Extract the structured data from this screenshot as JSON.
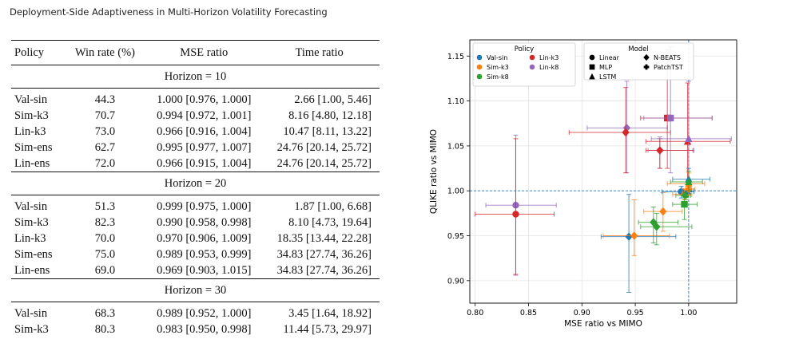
{
  "running_head": "Deployment-Side Adaptiveness in Multi-Horizon Volatility Forecasting",
  "table": {
    "columns": [
      "Policy",
      "Win rate (%)",
      "MSE ratio",
      "Time ratio"
    ],
    "groups": [
      {
        "label": "Horizon = 10",
        "rows": [
          [
            "Val-sin",
            "44.3",
            "1.000 [0.976, 1.000]",
            "2.66 [1.00, 5.46]"
          ],
          [
            "Sim-k3",
            "70.7",
            "0.994 [0.972, 1.001]",
            "8.16 [4.80, 12.18]"
          ],
          [
            "Lin-k3",
            "73.0",
            "0.966 [0.916, 1.004]",
            "10.47 [8.11, 13.22]"
          ],
          [
            "Sim-ens",
            "62.7",
            "0.995 [0.977, 1.007]",
            "24.76 [20.14, 25.72]"
          ],
          [
            "Lin-ens",
            "72.0",
            "0.966 [0.915, 1.004]",
            "24.76 [20.14, 25.72]"
          ]
        ]
      },
      {
        "label": "Horizon = 20",
        "rows": [
          [
            "Val-sin",
            "51.3",
            "0.999 [0.975, 1.000]",
            "1.87 [1.00, 6.68]"
          ],
          [
            "Sim-k3",
            "82.3",
            "0.990 [0.958, 0.998]",
            "8.10 [4.73, 19.64]"
          ],
          [
            "Lin-k3",
            "70.0",
            "0.970 [0.906, 1.009]",
            "18.35 [13.44, 22.28]"
          ],
          [
            "Sim-ens",
            "75.0",
            "0.989 [0.953, 0.999]",
            "34.83 [27.74, 36.26]"
          ],
          [
            "Lin-ens",
            "69.0",
            "0.969 [0.903, 1.015]",
            "34.83 [27.74, 36.26]"
          ]
        ]
      },
      {
        "label": "Horizon = 30",
        "rows": [
          [
            "Val-sin",
            "68.3",
            "0.989 [0.952, 1.000]",
            "3.45 [1.64, 18.92]"
          ],
          [
            "Sim-k3",
            "80.3",
            "0.983 [0.950, 0.998]",
            "11.44 [5.73, 29.97]"
          ]
        ]
      }
    ]
  },
  "chart_data": {
    "type": "scatter",
    "xlabel": "MSE ratio vs MIMO",
    "ylabel": "QLIKE ratio vs MIMO",
    "xlim": [
      0.795,
      1.045
    ],
    "ylim": [
      0.875,
      1.168
    ],
    "xticks": [
      "0.80",
      "0.85",
      "0.90",
      "0.95",
      "1.00"
    ],
    "yticks": [
      "0.90",
      "0.95",
      "1.00",
      "1.05",
      "1.10",
      "1.15"
    ],
    "grid": true,
    "reference_lines": {
      "x": 1.0,
      "y": 1.0,
      "color": "#1f77b4"
    },
    "legend_policy": {
      "title": "Policy",
      "entries": [
        {
          "name": "Val-sin",
          "color": "#1f77b4"
        },
        {
          "name": "Sim-k3",
          "color": "#ff7f0e"
        },
        {
          "name": "Sim-k8",
          "color": "#2ca02c"
        },
        {
          "name": "Lin-k3",
          "color": "#d62728"
        },
        {
          "name": "Lin-k8",
          "color": "#9467bd"
        }
      ]
    },
    "legend_model": {
      "title": "Model",
      "entries": [
        {
          "name": "Linear",
          "marker": "circle"
        },
        {
          "name": "MLP",
          "marker": "square"
        },
        {
          "name": "LSTM",
          "marker": "triangle"
        },
        {
          "name": "N-BEATS",
          "marker": "diamond"
        },
        {
          "name": "PatchTST",
          "marker": "plus"
        }
      ]
    },
    "points": [
      {
        "policy": "Lin-k8",
        "model": "circle",
        "x": 0.838,
        "y": 0.984,
        "xerr": [
          0.81,
          0.876
        ],
        "yerr": [
          0.906,
          1.062
        ]
      },
      {
        "policy": "Lin-k3",
        "model": "circle",
        "x": 0.838,
        "y": 0.974,
        "xerr": [
          0.8,
          0.874
        ],
        "yerr": [
          0.907,
          1.058
        ]
      },
      {
        "policy": "Lin-k8",
        "model": "diamond",
        "x": 0.942,
        "y": 1.07,
        "xerr": [
          0.905,
          0.98
        ],
        "yerr": [
          1.02,
          1.122
        ]
      },
      {
        "policy": "Lin-k3",
        "model": "diamond",
        "x": 0.941,
        "y": 1.065,
        "xerr": [
          0.888,
          0.983
        ],
        "yerr": [
          1.02,
          1.115
        ]
      },
      {
        "policy": "Lin-k3",
        "model": "square",
        "x": 0.98,
        "y": 1.081,
        "xerr": [
          0.955,
          1.022
        ],
        "yerr": [
          1.025,
          1.157
        ]
      },
      {
        "policy": "Lin-k8",
        "model": "square",
        "x": 0.983,
        "y": 1.081,
        "xerr": [
          0.958,
          1.022
        ],
        "yerr": [
          1.02,
          1.16
        ]
      },
      {
        "policy": "Lin-k8",
        "model": "diamond",
        "x": 0.973,
        "y": 1.045,
        "xerr": [
          0.962,
          1.005
        ],
        "yerr": [
          1.025,
          1.06
        ]
      },
      {
        "policy": "Lin-k3",
        "model": "diamond",
        "x": 0.973,
        "y": 1.045,
        "xerr": [
          0.96,
          1.004
        ],
        "yerr": [
          1.025,
          1.058
        ]
      },
      {
        "policy": "Lin-k3",
        "model": "triangle",
        "x": 0.999,
        "y": 1.055,
        "xerr": [
          0.96,
          1.039
        ],
        "yerr": [
          1.0,
          1.12
        ]
      },
      {
        "policy": "Lin-k8",
        "model": "triangle",
        "x": 1.0,
        "y": 1.058,
        "xerr": [
          0.965,
          1.04
        ],
        "yerr": [
          1.0,
          1.122
        ]
      },
      {
        "policy": "Val-sin",
        "model": "diamond",
        "x": 0.944,
        "y": 0.949,
        "xerr": [
          0.918,
          0.988
        ],
        "yerr": [
          0.887,
          0.996
        ]
      },
      {
        "policy": "Sim-k3",
        "model": "diamond",
        "x": 0.949,
        "y": 0.95,
        "xerr": [
          0.92,
          0.982
        ],
        "yerr": [
          0.928,
          0.99
        ]
      },
      {
        "policy": "Sim-k3",
        "model": "diamond",
        "x": 0.976,
        "y": 0.977,
        "xerr": [
          0.958,
          0.994
        ],
        "yerr": [
          0.955,
          0.998
        ]
      },
      {
        "policy": "Sim-k8",
        "model": "diamond",
        "x": 0.967,
        "y": 0.965,
        "xerr": [
          0.953,
          0.99
        ],
        "yerr": [
          0.942,
          0.982
        ]
      },
      {
        "policy": "Sim-k8",
        "model": "diamond",
        "x": 0.97,
        "y": 0.96,
        "xerr": [
          0.955,
          1.003
        ],
        "yerr": [
          0.94,
          0.975
        ]
      },
      {
        "policy": "Sim-k8",
        "model": "square",
        "x": 0.996,
        "y": 0.985,
        "xerr": [
          0.985,
          1.008
        ],
        "yerr": [
          0.968,
          0.998
        ]
      },
      {
        "policy": "Val-sin",
        "model": "circle",
        "x": 0.993,
        "y": 0.999,
        "xerr": [
          0.975,
          1.005
        ],
        "yerr": [
          0.992,
          1.005
        ]
      },
      {
        "policy": "Sim-k3",
        "model": "circle",
        "x": 0.996,
        "y": 0.996,
        "xerr": [
          0.985,
          1.003
        ],
        "yerr": [
          0.99,
          1.002
        ]
      },
      {
        "policy": "Sim-k8",
        "model": "circle",
        "x": 0.997,
        "y": 0.995,
        "xerr": [
          0.988,
          1.002
        ],
        "yerr": [
          0.99,
          1.0
        ]
      },
      {
        "policy": "Val-sin",
        "model": "plus",
        "x": 1.0,
        "y": 1.0,
        "xerr": [
          0.995,
          1.005
        ],
        "yerr": [
          0.997,
          1.003
        ]
      },
      {
        "policy": "Sim-k3",
        "model": "plus",
        "x": 1.0,
        "y": 1.002,
        "xerr": [
          0.994,
          1.006
        ],
        "yerr": [
          0.995,
          1.006
        ]
      },
      {
        "policy": "Val-sin",
        "model": "triangle",
        "x": 1.0,
        "y": 1.013,
        "xerr": [
          0.985,
          1.02
        ],
        "yerr": [
          1.0,
          1.025
        ]
      },
      {
        "policy": "Sim-k3",
        "model": "triangle",
        "x": 1.0,
        "y": 1.008,
        "xerr": [
          0.98,
          1.015
        ],
        "yerr": [
          1.0,
          1.02
        ]
      },
      {
        "policy": "Sim-k8",
        "model": "triangle",
        "x": 1.0,
        "y": 1.01,
        "xerr": [
          0.983,
          1.013
        ],
        "yerr": [
          1.0,
          1.022
        ]
      }
    ]
  }
}
